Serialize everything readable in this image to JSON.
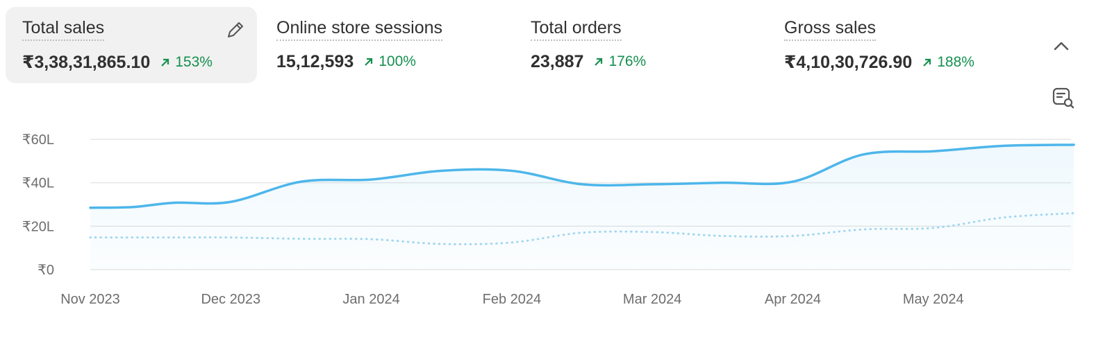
{
  "metrics": [
    {
      "title": "Total sales",
      "value": "₹3,38,31,865.10",
      "change": "153%",
      "selected": true
    },
    {
      "title": "Online store sessions",
      "value": "15,12,593",
      "change": "100%",
      "selected": false
    },
    {
      "title": "Total orders",
      "value": "23,887",
      "change": "176%",
      "selected": false
    },
    {
      "title": "Gross sales",
      "value": "₹4,10,30,726.90",
      "change": "188%",
      "selected": false
    }
  ],
  "icons": {
    "edit": "pencil-icon",
    "collapse": "chevron-up-icon",
    "chart_options": "chart-search-icon"
  },
  "colors": {
    "accent": "#4db6ea",
    "positive": "#14904f",
    "comparison": "#9fd6f0"
  },
  "chart_data": {
    "type": "line",
    "y_ticks": [
      "₹0",
      "₹20L",
      "₹40L",
      "₹60L"
    ],
    "ylim": [
      0,
      60
    ],
    "x_ticks": [
      "Nov 2023",
      "Dec 2023",
      "Jan 2024",
      "Feb 2024",
      "Mar 2024",
      "Apr 2024",
      "May 2024"
    ],
    "x": [
      0,
      0.3,
      0.6,
      1,
      1.5,
      2,
      2.5,
      3,
      3.5,
      4,
      4.5,
      5,
      5.5,
      6,
      6.5,
      7
    ],
    "series": [
      {
        "style": "solid",
        "fill": true,
        "values": [
          28.5,
          28.8,
          30.8,
          31.2,
          40.5,
          41.5,
          45.5,
          45.5,
          39.3,
          39.3,
          40,
          40.5,
          53,
          54.5,
          57,
          57.5
        ]
      },
      {
        "style": "dotted",
        "fill": false,
        "values": [
          14.8,
          14.8,
          14.8,
          14.8,
          14.2,
          14,
          11.8,
          12.5,
          17,
          17.3,
          15.5,
          15.5,
          18.5,
          19.2,
          24,
          26
        ]
      }
    ],
    "grid": true,
    "legend": "none"
  }
}
